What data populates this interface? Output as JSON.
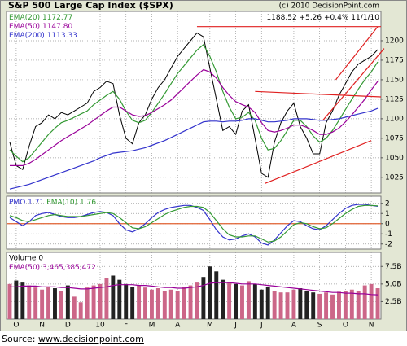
{
  "chart_data": [
    {
      "type": "line",
      "title": "S&P 500 Large Cap Index ($SPX)",
      "credit": "(c) 2010 DecisionPoint.com",
      "change": "+5.26",
      "change_pct": "+0.4%",
      "date": "11/1/10",
      "ylim": [
        1005,
        1237.5
      ],
      "yticks": [
        1025,
        1050,
        1075,
        1100,
        1125,
        1150,
        1175,
        1200
      ],
      "grid": true,
      "series": [
        {
          "color": "#000000",
          "values": [
            1070,
            1040,
            1035,
            1065,
            1090,
            1095,
            1105,
            1100,
            1108,
            1105,
            1110,
            1115,
            1120,
            1135,
            1140,
            1148,
            1145,
            1105,
            1075,
            1068,
            1095,
            1105,
            1125,
            1140,
            1150,
            1165,
            1180,
            1190,
            1200,
            1210,
            1205,
            1165,
            1125,
            1085,
            1090,
            1080,
            1110,
            1118,
            1075,
            1030,
            1025,
            1070,
            1095,
            1110,
            1120,
            1090,
            1075,
            1055,
            1055,
            1095,
            1110,
            1130,
            1145,
            1160,
            1170,
            1175,
            1180,
            1188.52
          ]
        },
        {
          "name": "EMA(20)",
          "color": "#339933",
          "last_label": "1172.77",
          "values": [
            1060,
            1052,
            1045,
            1050,
            1060,
            1070,
            1080,
            1088,
            1095,
            1098,
            1102,
            1106,
            1110,
            1118,
            1124,
            1130,
            1135,
            1125,
            1110,
            1098,
            1095,
            1098,
            1108,
            1120,
            1132,
            1145,
            1158,
            1168,
            1178,
            1188,
            1195,
            1180,
            1160,
            1135,
            1115,
            1100,
            1102,
            1108,
            1098,
            1075,
            1060,
            1062,
            1072,
            1085,
            1098,
            1098,
            1090,
            1078,
            1070,
            1075,
            1085,
            1098,
            1112,
            1125,
            1138,
            1150,
            1160,
            1172.77
          ]
        },
        {
          "name": "EMA(50)",
          "color": "#990099",
          "last_label": "1147.80",
          "values": [
            1040,
            1040,
            1040,
            1043,
            1048,
            1054,
            1060,
            1066,
            1072,
            1077,
            1082,
            1087,
            1092,
            1098,
            1104,
            1110,
            1115,
            1115,
            1110,
            1105,
            1103,
            1104,
            1108,
            1113,
            1118,
            1124,
            1132,
            1140,
            1148,
            1156,
            1163,
            1160,
            1152,
            1140,
            1130,
            1122,
            1118,
            1115,
            1108,
            1095,
            1085,
            1083,
            1085,
            1088,
            1092,
            1092,
            1089,
            1085,
            1080,
            1080,
            1083,
            1088,
            1096,
            1105,
            1115,
            1125,
            1137,
            1147.8
          ]
        },
        {
          "name": "EMA(200)",
          "color": "#3333cc",
          "last_label": "1113.33",
          "values": [
            1010,
            1012,
            1014,
            1016,
            1019,
            1022,
            1025,
            1028,
            1031,
            1034,
            1037,
            1040,
            1043,
            1046,
            1050,
            1053,
            1056,
            1057,
            1058,
            1059,
            1061,
            1063,
            1066,
            1069,
            1072,
            1076,
            1080,
            1084,
            1088,
            1092,
            1096,
            1097,
            1097,
            1096,
            1097,
            1097,
            1098,
            1100,
            1100,
            1098,
            1096,
            1096,
            1097,
            1098,
            1100,
            1100,
            1100,
            1099,
            1098,
            1098,
            1099,
            1100,
            1102,
            1104,
            1106,
            1108,
            1110,
            1113.33
          ]
        }
      ],
      "trendlines": [
        {
          "color": "#e02020",
          "from": [
            29,
            1218
          ],
          "to": [
            57.5,
            1218
          ]
        },
        {
          "color": "#e02020",
          "from": [
            38,
            1135
          ],
          "to": [
            57.5,
            1128
          ]
        },
        {
          "color": "#e02020",
          "from": [
            39.5,
            1017
          ],
          "to": [
            56,
            1072
          ]
        },
        {
          "color": "#e02020",
          "from": [
            50.5,
            1150
          ],
          "to": [
            57,
            1218
          ]
        },
        {
          "color": "#e02020",
          "from": [
            48.5,
            1098
          ],
          "to": [
            58,
            1190
          ]
        }
      ]
    },
    {
      "type": "line",
      "ylim": [
        -2.5,
        2.7
      ],
      "yticks": [
        2,
        1,
        0,
        -1,
        -2
      ],
      "grid": true,
      "hline": {
        "value": 0,
        "color": "#e06030"
      },
      "series": [
        {
          "name": "PMO",
          "color": "#3333cc",
          "values": [
            0.6,
            0.2,
            -0.2,
            0.2,
            0.8,
            1.0,
            1.1,
            0.9,
            0.7,
            0.6,
            0.6,
            0.7,
            0.9,
            1.1,
            1.2,
            1.1,
            0.8,
            0.0,
            -0.6,
            -0.8,
            -0.5,
            0.0,
            0.6,
            1.1,
            1.4,
            1.6,
            1.7,
            1.8,
            1.8,
            1.6,
            1.3,
            0.4,
            -0.6,
            -1.3,
            -1.6,
            -1.5,
            -1.2,
            -1.0,
            -1.3,
            -1.9,
            -2.1,
            -1.6,
            -0.9,
            -0.2,
            0.3,
            0.2,
            -0.2,
            -0.5,
            -0.6,
            -0.2,
            0.4,
            1.0,
            1.5,
            1.8,
            1.9,
            1.9,
            1.8,
            1.71
          ]
        },
        {
          "name": "EMA(10)",
          "color": "#339933",
          "values": [
            0.8,
            0.6,
            0.3,
            0.2,
            0.4,
            0.6,
            0.8,
            0.9,
            0.8,
            0.7,
            0.7,
            0.7,
            0.8,
            0.9,
            1.0,
            1.1,
            1.0,
            0.6,
            0.1,
            -0.4,
            -0.5,
            -0.3,
            0.1,
            0.5,
            0.9,
            1.2,
            1.4,
            1.6,
            1.7,
            1.7,
            1.6,
            1.1,
            0.3,
            -0.5,
            -1.1,
            -1.3,
            -1.3,
            -1.2,
            -1.2,
            -1.5,
            -1.8,
            -1.7,
            -1.3,
            -0.7,
            -0.1,
            0.1,
            0.0,
            -0.3,
            -0.5,
            -0.4,
            0.0,
            0.5,
            1.0,
            1.4,
            1.7,
            1.8,
            1.8,
            1.76
          ]
        }
      ]
    },
    {
      "type": "bar",
      "label": "Volume 0",
      "ylim": [
        0,
        9.5
      ],
      "yticks": [
        {
          "value": 7.5,
          "label": "7.5B"
        },
        {
          "value": 5,
          "label": "5.0B"
        },
        {
          "value": 2.5,
          "label": "2.5B"
        }
      ],
      "grid": true,
      "categories": [
        null,
        "O",
        null,
        null,
        null,
        "N",
        null,
        null,
        null,
        "D",
        null,
        null,
        null,
        null,
        "10",
        null,
        null,
        null,
        "F",
        null,
        null,
        null,
        "M",
        null,
        null,
        null,
        "A",
        null,
        null,
        null,
        null,
        "M",
        null,
        null,
        null,
        "J",
        null,
        null,
        null,
        "J",
        null,
        null,
        null,
        null,
        "A",
        null,
        null,
        null,
        "S",
        null,
        null,
        null,
        "O",
        null,
        null,
        null,
        "N",
        null
      ],
      "up_color": "#cc6688",
      "down_color": "#222222",
      "values": [
        5.0,
        5.5,
        5.2,
        4.8,
        4.5,
        4.2,
        4.6,
        4.4,
        4.0,
        4.8,
        3.2,
        2.4,
        4.5,
        4.8,
        5.0,
        5.8,
        6.2,
        5.6,
        5.0,
        4.6,
        4.8,
        4.5,
        4.2,
        4.4,
        4.0,
        4.2,
        4.0,
        4.6,
        4.8,
        5.2,
        6.0,
        7.5,
        6.8,
        5.6,
        5.2,
        5.0,
        4.8,
        5.4,
        5.0,
        4.2,
        4.6,
        4.0,
        3.8,
        3.8,
        4.2,
        4.4,
        4.0,
        3.8,
        3.6,
        3.8,
        3.5,
        3.9,
        4.0,
        4.2,
        4.0,
        4.8,
        5.0,
        4.4
      ],
      "series": [
        {
          "name": "EMA(50)",
          "color": "#990099",
          "legend_label": "3,465,385,472",
          "values": [
            4.6,
            4.6,
            4.7,
            4.7,
            4.7,
            4.6,
            4.6,
            4.6,
            4.5,
            4.5,
            4.4,
            4.3,
            4.3,
            4.4,
            4.5,
            4.6,
            4.8,
            4.9,
            4.9,
            4.9,
            4.8,
            4.8,
            4.7,
            4.6,
            4.5,
            4.5,
            4.4,
            4.4,
            4.5,
            4.6,
            4.8,
            5.1,
            5.2,
            5.2,
            5.2,
            5.1,
            5.0,
            5.0,
            5.0,
            4.9,
            4.8,
            4.7,
            4.6,
            4.5,
            4.4,
            4.3,
            4.2,
            4.1,
            4.0,
            3.9,
            3.8,
            3.8,
            3.7,
            3.7,
            3.6,
            3.6,
            3.5,
            3.465385472
          ]
        }
      ]
    }
  ],
  "source": {
    "label": "Source:",
    "link": "www.decisionpoint.com"
  }
}
